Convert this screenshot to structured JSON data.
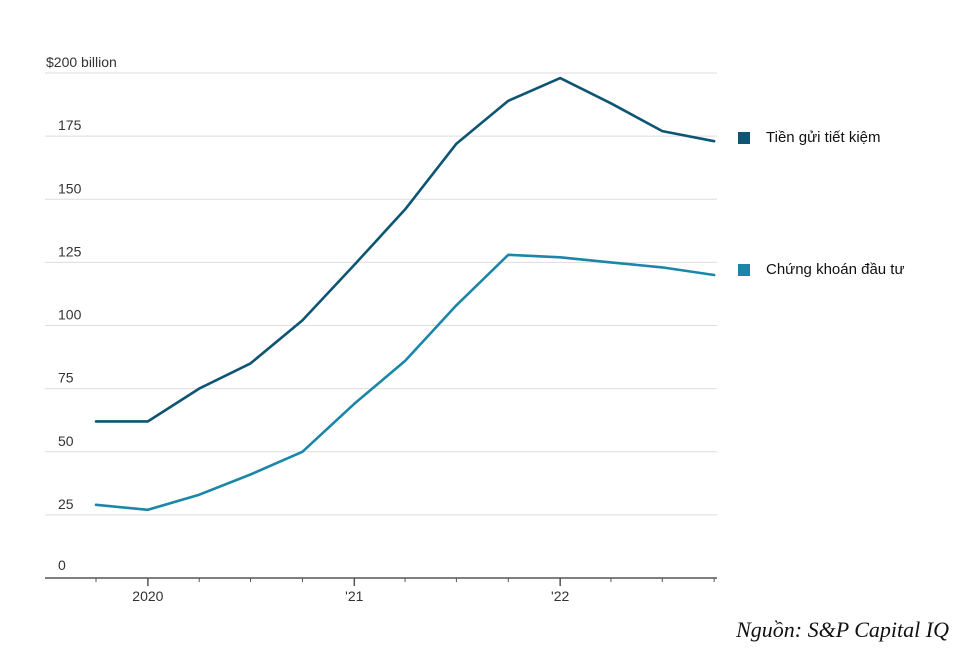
{
  "chart_data": {
    "type": "line",
    "x": [
      "2019-10-01",
      "2020-01-01",
      "2020-04-01",
      "2020-07-01",
      "2020-10-01",
      "2021-01-01",
      "2021-04-01",
      "2021-07-01",
      "2021-10-01",
      "2022-01-01",
      "2022-04-01",
      "2022-07-01",
      "2022-10-01"
    ],
    "series": [
      {
        "name": "Tiền gửi tiết kiệm",
        "color": "#0d5573",
        "values": [
          62,
          62,
          75,
          85,
          102,
          124,
          146,
          172,
          189,
          198,
          188,
          177,
          173
        ]
      },
      {
        "name": "Chứng khoán đầu tư",
        "color": "#1b86a8",
        "values": [
          29,
          27,
          33,
          41,
          50,
          69,
          86,
          108,
          128,
          127,
          125,
          123,
          120
        ]
      }
    ],
    "y_ticks": [
      "$200 billion",
      "175",
      "150",
      "125",
      "100",
      "75",
      "50",
      "25",
      "0"
    ],
    "x_ticks": [
      "2020",
      "'21",
      "'22"
    ],
    "ylim": [
      0,
      200
    ],
    "grid": true,
    "legend_position": "right"
  },
  "source": "Nguồn: S&P Capital IQ"
}
